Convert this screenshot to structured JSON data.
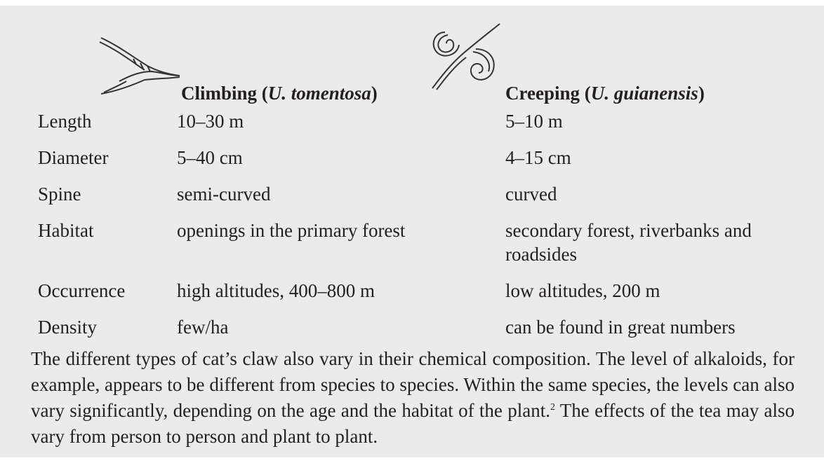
{
  "table": {
    "header": [
      [
        "Climbing (",
        "U. tomentosa",
        ")"
      ],
      [
        "Creeping (",
        "U. guianensis",
        ")"
      ]
    ],
    "rows": [
      [
        "Length",
        "10–30 m",
        "5–10 m"
      ],
      [
        "Diameter",
        "5–40 cm",
        "4–15 cm"
      ],
      [
        "Spine",
        "semi-curved",
        "curved"
      ],
      [
        "Habitat",
        "openings in the primary forest",
        "secondary forest, riverbanks and roadsides"
      ],
      [
        "Occurrence",
        "high altitudes, 400–800 m",
        "low altitudes, 200 m"
      ],
      [
        "Density",
        "few/ha",
        "can be found in great numbers"
      ]
    ]
  },
  "paragraph": [
    "The different types of cat’s claw also vary in their chemical composition. The level of alkaloids, for example, appears to be different from species to species. Within the same species, the levels can also vary significantly, depending on the age and the habitat of the plant.",
    "2",
    " The effects of the tea may also vary from person to person and plant to plant."
  ]
}
